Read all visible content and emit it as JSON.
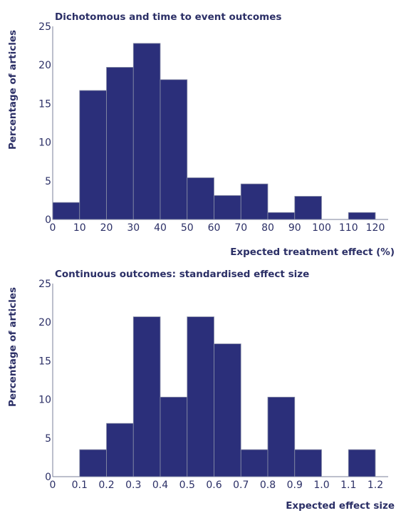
{
  "chart_data": [
    {
      "type": "bar",
      "title": "Dichotomous and time to event outcomes",
      "xlabel": "Expected treatment effect (%)",
      "ylabel": "Percentage of articles",
      "bin_edges": [
        0,
        10,
        20,
        30,
        40,
        50,
        60,
        70,
        80,
        90,
        100,
        110,
        120
      ],
      "xticks": [
        "0",
        "10",
        "20",
        "30",
        "40",
        "50",
        "60",
        "70",
        "80",
        "90",
        "100",
        "110",
        "120"
      ],
      "values": [
        2.2,
        16.7,
        19.7,
        22.8,
        18.1,
        5.4,
        3.1,
        4.6,
        0.9,
        3.0,
        0,
        0.9
      ],
      "yticks": [
        "0",
        "5",
        "10",
        "15",
        "20",
        "25"
      ],
      "ylim": [
        0,
        25
      ],
      "bar_color": "#2b2f7a",
      "grid": false
    },
    {
      "type": "bar",
      "title": "Continuous outcomes: standardised effect size",
      "xlabel": "Expected effect size",
      "ylabel": "Percentage of articles",
      "bin_edges": [
        0,
        0.1,
        0.2,
        0.3,
        0.4,
        0.5,
        0.6,
        0.7,
        0.8,
        0.9,
        1.0,
        1.1,
        1.2
      ],
      "xticks": [
        "0",
        "0.1",
        "0.2",
        "0.3",
        "0.4",
        "0.5",
        "0.6",
        "0.7",
        "0.8",
        "0.9",
        "1.0",
        "1.1",
        "1.2"
      ],
      "values": [
        0,
        3.5,
        6.9,
        20.7,
        10.3,
        20.7,
        17.2,
        3.5,
        10.3,
        3.5,
        0,
        3.5
      ],
      "yticks": [
        "0",
        "5",
        "10",
        "15",
        "20",
        "25"
      ],
      "ylim": [
        0,
        25
      ],
      "bar_color": "#2b2f7a",
      "grid": false
    }
  ]
}
